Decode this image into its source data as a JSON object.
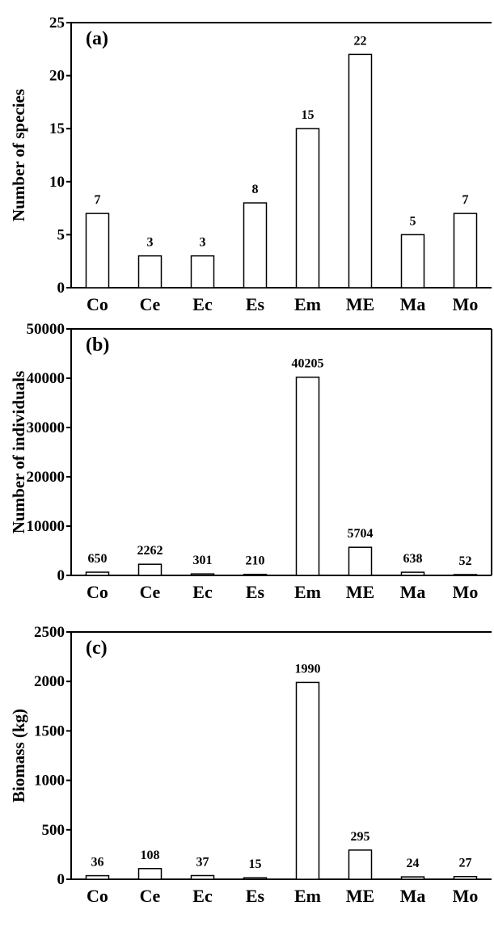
{
  "chart_data": [
    {
      "type": "bar",
      "panel_label": "(a)",
      "ylabel": "Number of species",
      "categories": [
        "Co",
        "Ce",
        "Ec",
        "Es",
        "Em",
        "ME",
        "Ma",
        "Mo"
      ],
      "values": [
        7,
        3,
        3,
        8,
        15,
        22,
        5,
        7
      ],
      "data_labels": [
        "7",
        "3",
        "3",
        "8",
        "15",
        "22",
        "5",
        "7"
      ],
      "ylim": [
        0,
        25
      ],
      "yticks": [
        0,
        5,
        10,
        15,
        20,
        25
      ],
      "ytick_labels": [
        "0",
        "5",
        "10",
        "15",
        "20",
        "25"
      ]
    },
    {
      "type": "bar",
      "panel_label": "(b)",
      "ylabel": "Number of individuals",
      "categories": [
        "Co",
        "Ce",
        "Ec",
        "Es",
        "Em",
        "ME",
        "Ma",
        "Mo"
      ],
      "values": [
        650,
        2262,
        301,
        210,
        40205,
        5704,
        638,
        52
      ],
      "data_labels": [
        "650",
        "2262",
        "301",
        "210",
        "40205",
        "5704",
        "638",
        "52"
      ],
      "ylim": [
        0,
        50000
      ],
      "yticks": [
        0,
        10000,
        20000,
        30000,
        40000,
        50000
      ],
      "ytick_labels": [
        "0",
        "10000",
        "20000",
        "30000",
        "40000",
        "50000"
      ]
    },
    {
      "type": "bar",
      "panel_label": "(c)",
      "ylabel": "Biomass (kg)",
      "categories": [
        "Co",
        "Ce",
        "Ec",
        "Es",
        "Em",
        "ME",
        "Ma",
        "Mo"
      ],
      "values": [
        36,
        108,
        37,
        15,
        1990,
        295,
        24,
        27
      ],
      "data_labels": [
        "36",
        "108",
        "37",
        "15",
        "1990",
        "295",
        "24",
        "27"
      ],
      "ylim": [
        0,
        2500
      ],
      "yticks": [
        0,
        500,
        1000,
        1500,
        2000,
        2500
      ],
      "ytick_labels": [
        "0",
        "500",
        "1000",
        "1500",
        "2000",
        "2500"
      ]
    }
  ]
}
